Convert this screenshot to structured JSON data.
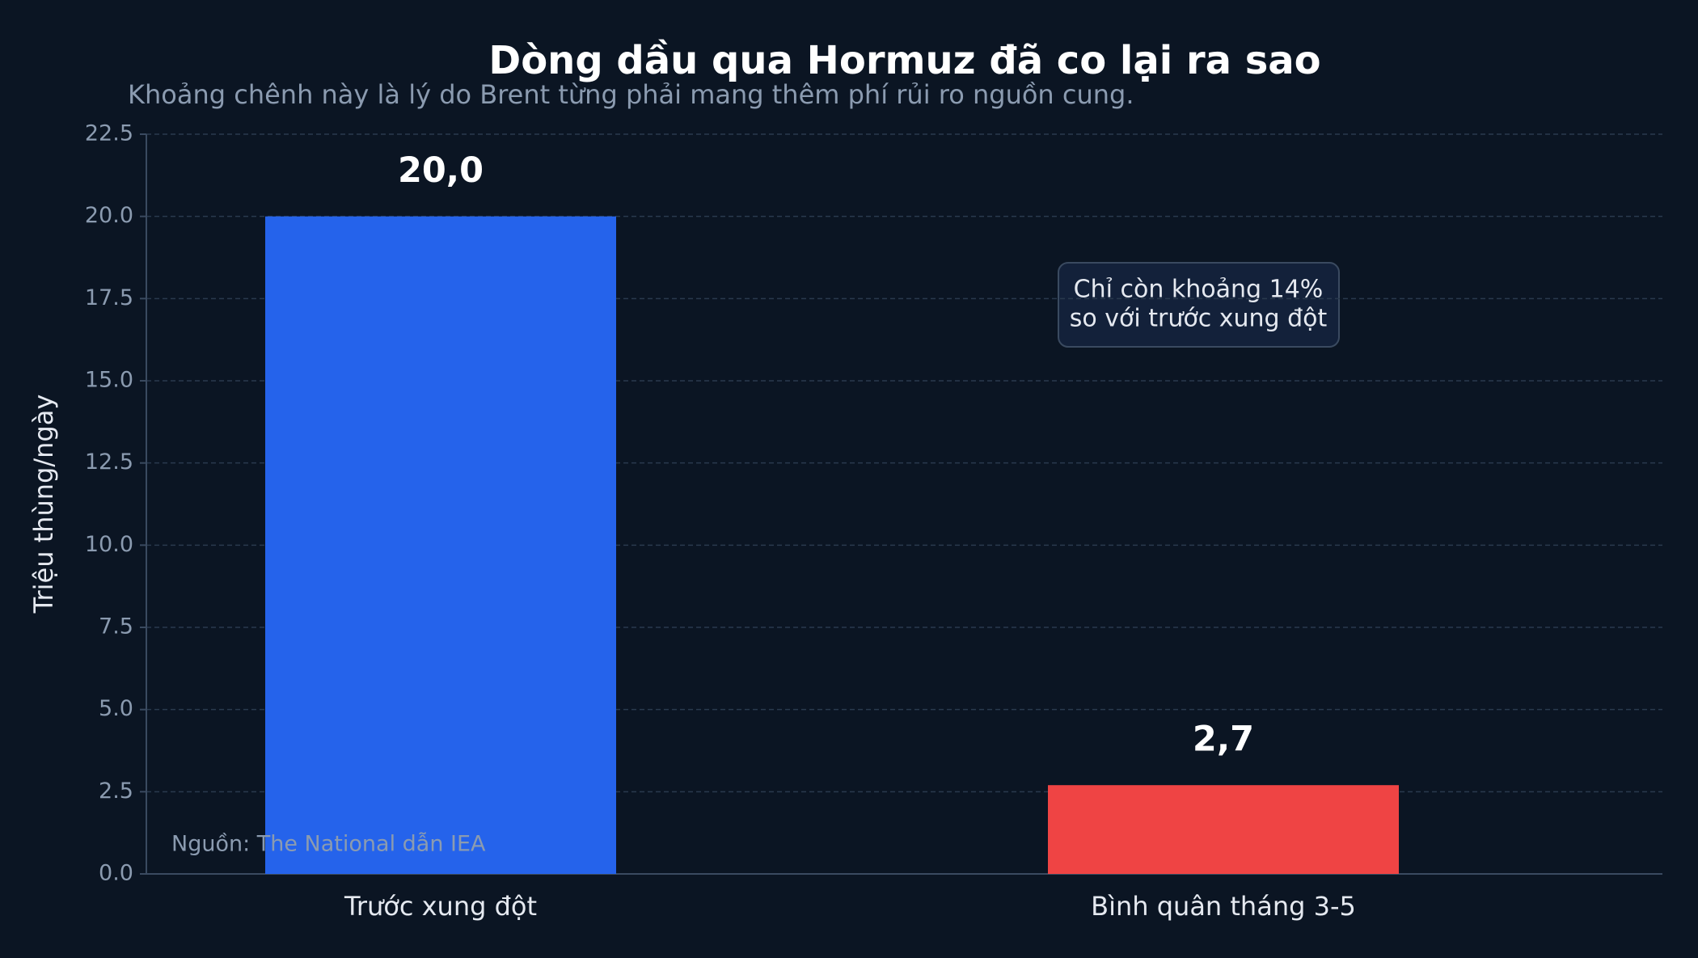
{
  "chart_data": {
    "type": "bar",
    "title": "Dòng dầu qua Hormuz đã co lại ra sao",
    "subtitle": "Khoảng chênh này là lý do Brent từng phải mang thêm phí rủi ro nguồn cung.",
    "y_label": "Triệu thùng/ngày",
    "categories": [
      "Trước xung đột",
      "Bình quân tháng 3-5"
    ],
    "values": [
      20.0,
      2.7
    ],
    "value_labels": [
      "20,0",
      "2,7"
    ],
    "colors": [
      "#2563eb",
      "#ef4444"
    ],
    "ylim": [
      0,
      22.5
    ],
    "yticks": [
      {
        "value": 0,
        "label": "0.0"
      },
      2.5,
      {
        "value": 5,
        "label": "5.0"
      },
      7.5,
      {
        "value": 10,
        "label": "10.0"
      },
      12.5,
      {
        "value": 15,
        "label": "15.0"
      },
      17.5,
      {
        "value": 20,
        "label": "20.0"
      },
      22.5
    ],
    "grid": true,
    "annotation": [
      "Chỉ còn khoảng 14%",
      "so với trước xung đột"
    ],
    "source": "Nguồn: The National dẫn IEA"
  }
}
